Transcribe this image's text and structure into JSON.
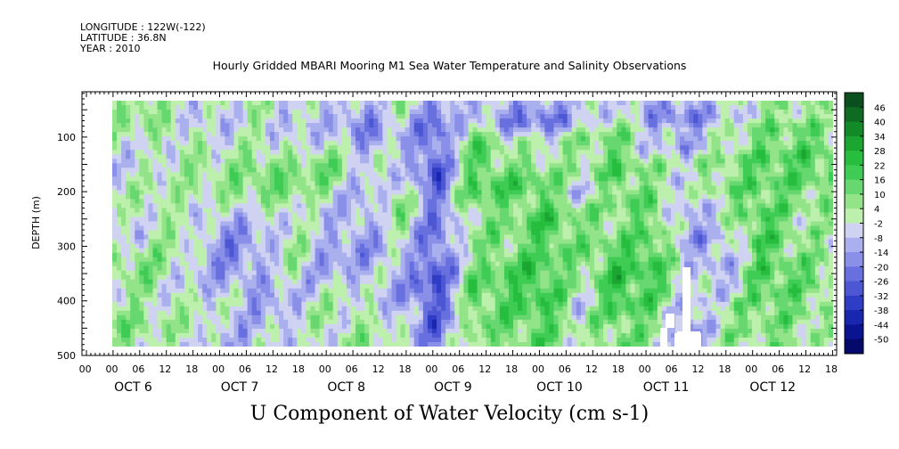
{
  "header": {
    "longitude": "LONGITUDE : 122W(-122)",
    "latitude": "LATITUDE : 36.8N",
    "year": "YEAR : 2010"
  },
  "chart_data": {
    "type": "heatmap",
    "title": "Hourly Gridded MBARI Mooring M1 Sea Water Temperature and Salinity Observations",
    "bottom_title": "U Component of Water Velocity (cm s-1)",
    "ylabel": "DEPTH (m)",
    "y_ticks": [
      "100",
      "200",
      "300",
      "400",
      "500"
    ],
    "y_tick_values": [
      100,
      200,
      300,
      400,
      500
    ],
    "ylim": [
      500,
      0
    ],
    "hour_ticks": [
      "00",
      "06",
      "12",
      "18",
      "00",
      "06",
      "12",
      "18",
      "00",
      "06",
      "12",
      "18",
      "00",
      "06",
      "12",
      "18",
      "00",
      "06",
      "12",
      "18",
      "00",
      "06",
      "12",
      "18",
      "00",
      "06",
      "12",
      "18"
    ],
    "day_labels": [
      "OCT  6",
      "OCT  7",
      "OCT  8",
      "OCT  9",
      "OCT 10",
      "OCT 11",
      "OCT 12"
    ],
    "colorbar_labels": [
      "46",
      "40",
      "34",
      "28",
      "22",
      "16",
      "10",
      "4",
      "-2",
      "-8",
      "-14",
      "-20",
      "-26",
      "-32",
      "-38",
      "-44",
      "-50"
    ],
    "colorbar_colors": [
      "#0b4f1e",
      "#0f6b22",
      "#138a28",
      "#1aa631",
      "#27bd3e",
      "#3fcc55",
      "#67d86f",
      "#93e489",
      "#bdefad",
      "#d0d2f2",
      "#aab0ee",
      "#8a8fe8",
      "#6870df",
      "#4d57d4",
      "#2f3cc6",
      "#1826b0",
      "#0b1490",
      "#050a6a"
    ],
    "notes_cells": [
      {
        "time": 0.0,
        "pattern": "-5 6 3 -4 8 4 -3 5 6 -2 10 4"
      },
      {
        "time": 0.05,
        "pattern": "8 10 -3 4 12 6 -4 8 9 2 14 8"
      },
      {
        "time": 0.1,
        "pattern": "-6 -2 8 12 6 -3 5 4 -2 6 8 -4"
      },
      {
        "time": 0.15,
        "pattern": "-4 -8 6 10 4 -6 -12 -10 -8 -2 -6 -4"
      },
      {
        "time": 0.2,
        "pattern": "2 4 10 14 8 -2 -6 -10 -14 -8 -4 -2"
      },
      {
        "time": 0.25,
        "pattern": "-6 -4 2 6 12 8 4 6 2 -4 -2 -6"
      },
      {
        "time": 0.3,
        "pattern": "-4 -2 4 12 8 -4 -8 -10 -6 2 6 4"
      },
      {
        "time": 0.35,
        "pattern": "-10 -14 -8 -4 -6 -10 -12 -8 -4 2 6 8"
      },
      {
        "time": 0.4,
        "pattern": "4 2 -4 -2 8 10 6 -4 -8 -6 -2 4"
      },
      {
        "time": 0.45,
        "pattern": "-14 -20 -24 -26 -22 -18 -20 -24 -28 -26 -22 -18"
      },
      {
        "time": 0.5,
        "pattern": "-8 6 16 20 18 12 8 10 14 16 12 10"
      },
      {
        "time": 0.55,
        "pattern": "-10 -12 4 14 18 12 10 16 20 18 14 12"
      },
      {
        "time": 0.6,
        "pattern": "-14 -16 2 12 16 20 22 18 24 22 18 16"
      },
      {
        "time": 0.65,
        "pattern": "-6 -4 10 6 -4 8 12 10 6 -2 4 2"
      },
      {
        "time": 0.7,
        "pattern": "-4 10 14 18 16 12 10 20 24 22 16 12"
      },
      {
        "time": 0.75,
        "pattern": "-12 -8 -4 6 12 14 18 22 20 16 10 8"
      },
      {
        "time": 0.8,
        "pattern": "-10 -14 -6 4 -4 -10 -12 -6 2 -8 -16 -12"
      },
      {
        "time": 0.85,
        "pattern": "-6 -2 6 10 12 4 -4 -10 -8 4 8 6"
      },
      {
        "time": 0.9,
        "pattern": "4 10 14 18 16 20 22 18 20 16 12 10"
      },
      {
        "time": 0.95,
        "pattern": "6 12 16 18 14 10 8 12 16 14 10 8"
      },
      {
        "time": 1.0,
        "pattern": "2 8 14 16 12 6 4 8 10 8 4 2"
      }
    ],
    "xlim_days": [
      6,
      12.8
    ]
  }
}
